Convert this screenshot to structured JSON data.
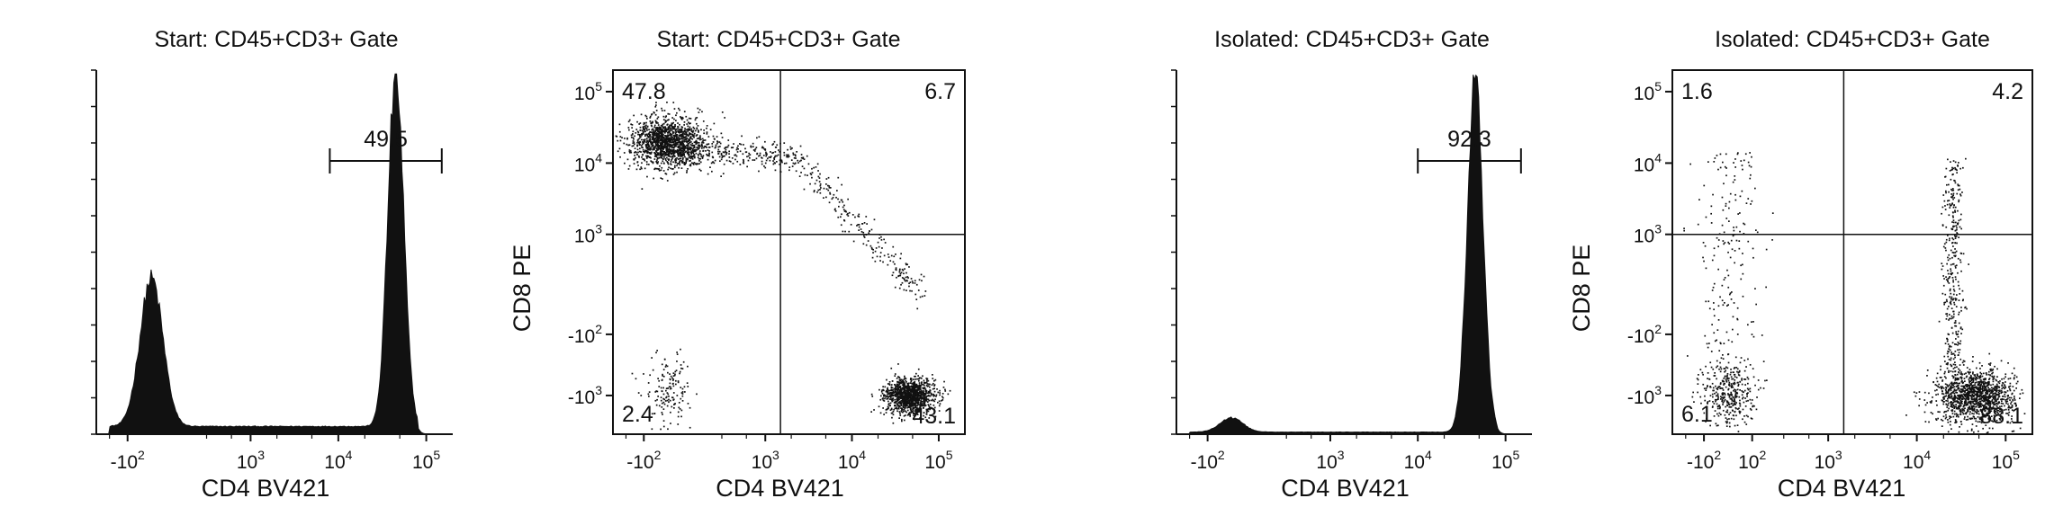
{
  "figure": {
    "panels": [
      {
        "title": "Start: CD45+CD3+ Gate",
        "xlabel": "CD4 BV421",
        "ylabel": "",
        "type": "histogram"
      },
      {
        "title": "Start: CD45+CD3+ Gate",
        "xlabel": "CD4 BV421",
        "ylabel": "CD8 PE",
        "type": "scatter"
      },
      {
        "title": "Isolated: CD45+CD3+ Gate",
        "xlabel": "CD4 BV421",
        "ylabel": "",
        "type": "histogram"
      },
      {
        "title": "Isolated: CD45+CD3+ Gate",
        "xlabel": "CD4 BV421",
        "ylabel": "CD8 PE",
        "type": "scatter"
      }
    ]
  },
  "chart_data": [
    {
      "type": "area",
      "subtype": "histogram",
      "title": "Start: CD45+CD3+ Gate",
      "xlabel": "CD4 BV421",
      "ylabel": "",
      "x_scale": "biexponential",
      "x_ticks": [
        {
          "base": "-10",
          "exp": "2",
          "value": -100
        },
        {
          "base": "10",
          "exp": "3",
          "value": 1000
        },
        {
          "base": "10",
          "exp": "4",
          "value": 10000
        },
        {
          "base": "10",
          "exp": "5",
          "value": 100000
        }
      ],
      "peaks": [
        {
          "center": 0,
          "height": 0.42,
          "description": "negative population"
        },
        {
          "center": 45000,
          "height": 1.0,
          "description": "CD4+ population"
        }
      ],
      "gate": {
        "label": "49.5",
        "from": 8000,
        "to": 150000,
        "percent": 49.5
      }
    },
    {
      "type": "scatter",
      "title": "Start: CD45+CD3+ Gate",
      "xlabel": "CD4 BV421",
      "ylabel": "CD8 PE",
      "x_scale": "biexponential",
      "y_scale": "biexponential",
      "x_ticks": [
        {
          "base": "-10",
          "exp": "2",
          "value": -100
        },
        {
          "base": "10",
          "exp": "3",
          "value": 1000
        },
        {
          "base": "10",
          "exp": "4",
          "value": 10000
        },
        {
          "base": "10",
          "exp": "5",
          "value": 100000
        }
      ],
      "y_ticks": [
        {
          "base": "10",
          "exp": "5",
          "value": 100000
        },
        {
          "base": "10",
          "exp": "4",
          "value": 10000
        },
        {
          "base": "10",
          "exp": "3",
          "value": 1000
        },
        {
          "base": "-10",
          "exp": "2",
          "value": -100
        },
        {
          "base": "-10",
          "exp": "3",
          "value": -1000
        }
      ],
      "quadrants": {
        "upper_left": "47.8",
        "upper_right": "6.7",
        "lower_left": "2.4",
        "lower_right": "43.1"
      },
      "populations": [
        {
          "name_hint": "CD8+ CD4-",
          "x": 0,
          "y": 20000,
          "n": 1400
        },
        {
          "name_hint": "CD4+ CD8-",
          "x": 45000,
          "y": -1000,
          "n": 1200
        },
        {
          "name_hint": "double negative",
          "x": 0,
          "y": -800,
          "n": 150
        },
        {
          "name_hint": "transition band",
          "x": 8000,
          "y": 5000,
          "n": 550
        }
      ]
    },
    {
      "type": "area",
      "subtype": "histogram",
      "title": "Isolated: CD45+CD3+ Gate",
      "xlabel": "CD4 BV421",
      "ylabel": "",
      "x_scale": "biexponential",
      "x_ticks": [
        {
          "base": "-10",
          "exp": "2",
          "value": -100
        },
        {
          "base": "10",
          "exp": "3",
          "value": 1000
        },
        {
          "base": "10",
          "exp": "4",
          "value": 10000
        },
        {
          "base": "10",
          "exp": "5",
          "value": 100000
        }
      ],
      "peaks": [
        {
          "center": 0,
          "height": 0.04,
          "description": "residual negative population"
        },
        {
          "center": 45000,
          "height": 1.0,
          "description": "CD4+ population"
        }
      ],
      "gate": {
        "label": "92.3",
        "from": 10000,
        "to": 150000,
        "percent": 92.3
      }
    },
    {
      "type": "scatter",
      "title": "Isolated: CD45+CD3+ Gate",
      "xlabel": "CD4 BV421",
      "ylabel": "CD8 PE",
      "x_scale": "biexponential",
      "y_scale": "biexponential",
      "x_ticks": [
        {
          "base": "-10",
          "exp": "2",
          "value": -100
        },
        {
          "base": "10",
          "exp": "2",
          "value": 100
        },
        {
          "base": "10",
          "exp": "3",
          "value": 1000
        },
        {
          "base": "10",
          "exp": "4",
          "value": 10000
        },
        {
          "base": "10",
          "exp": "5",
          "value": 100000
        }
      ],
      "y_ticks": [
        {
          "base": "10",
          "exp": "5",
          "value": 100000
        },
        {
          "base": "10",
          "exp": "4",
          "value": 10000
        },
        {
          "base": "10",
          "exp": "3",
          "value": 1000
        },
        {
          "base": "-10",
          "exp": "2",
          "value": -100
        },
        {
          "base": "-10",
          "exp": "3",
          "value": -1000
        }
      ],
      "quadrants": {
        "upper_left": "1.6",
        "upper_right": "4.2",
        "lower_left": "6.1",
        "lower_right": "88.1"
      },
      "populations": [
        {
          "name_hint": "CD4+ CD8-",
          "x": 45000,
          "y": -1000,
          "n": 1300
        },
        {
          "name_hint": "double negative",
          "x": 0,
          "y": -900,
          "n": 380
        },
        {
          "name_hint": "CD4+ CD8 low streak",
          "x": 25000,
          "y": 3000,
          "n": 350
        },
        {
          "name_hint": "CD8+ CD4- sparse",
          "x": 0,
          "y": 5000,
          "n": 180
        }
      ]
    }
  ]
}
